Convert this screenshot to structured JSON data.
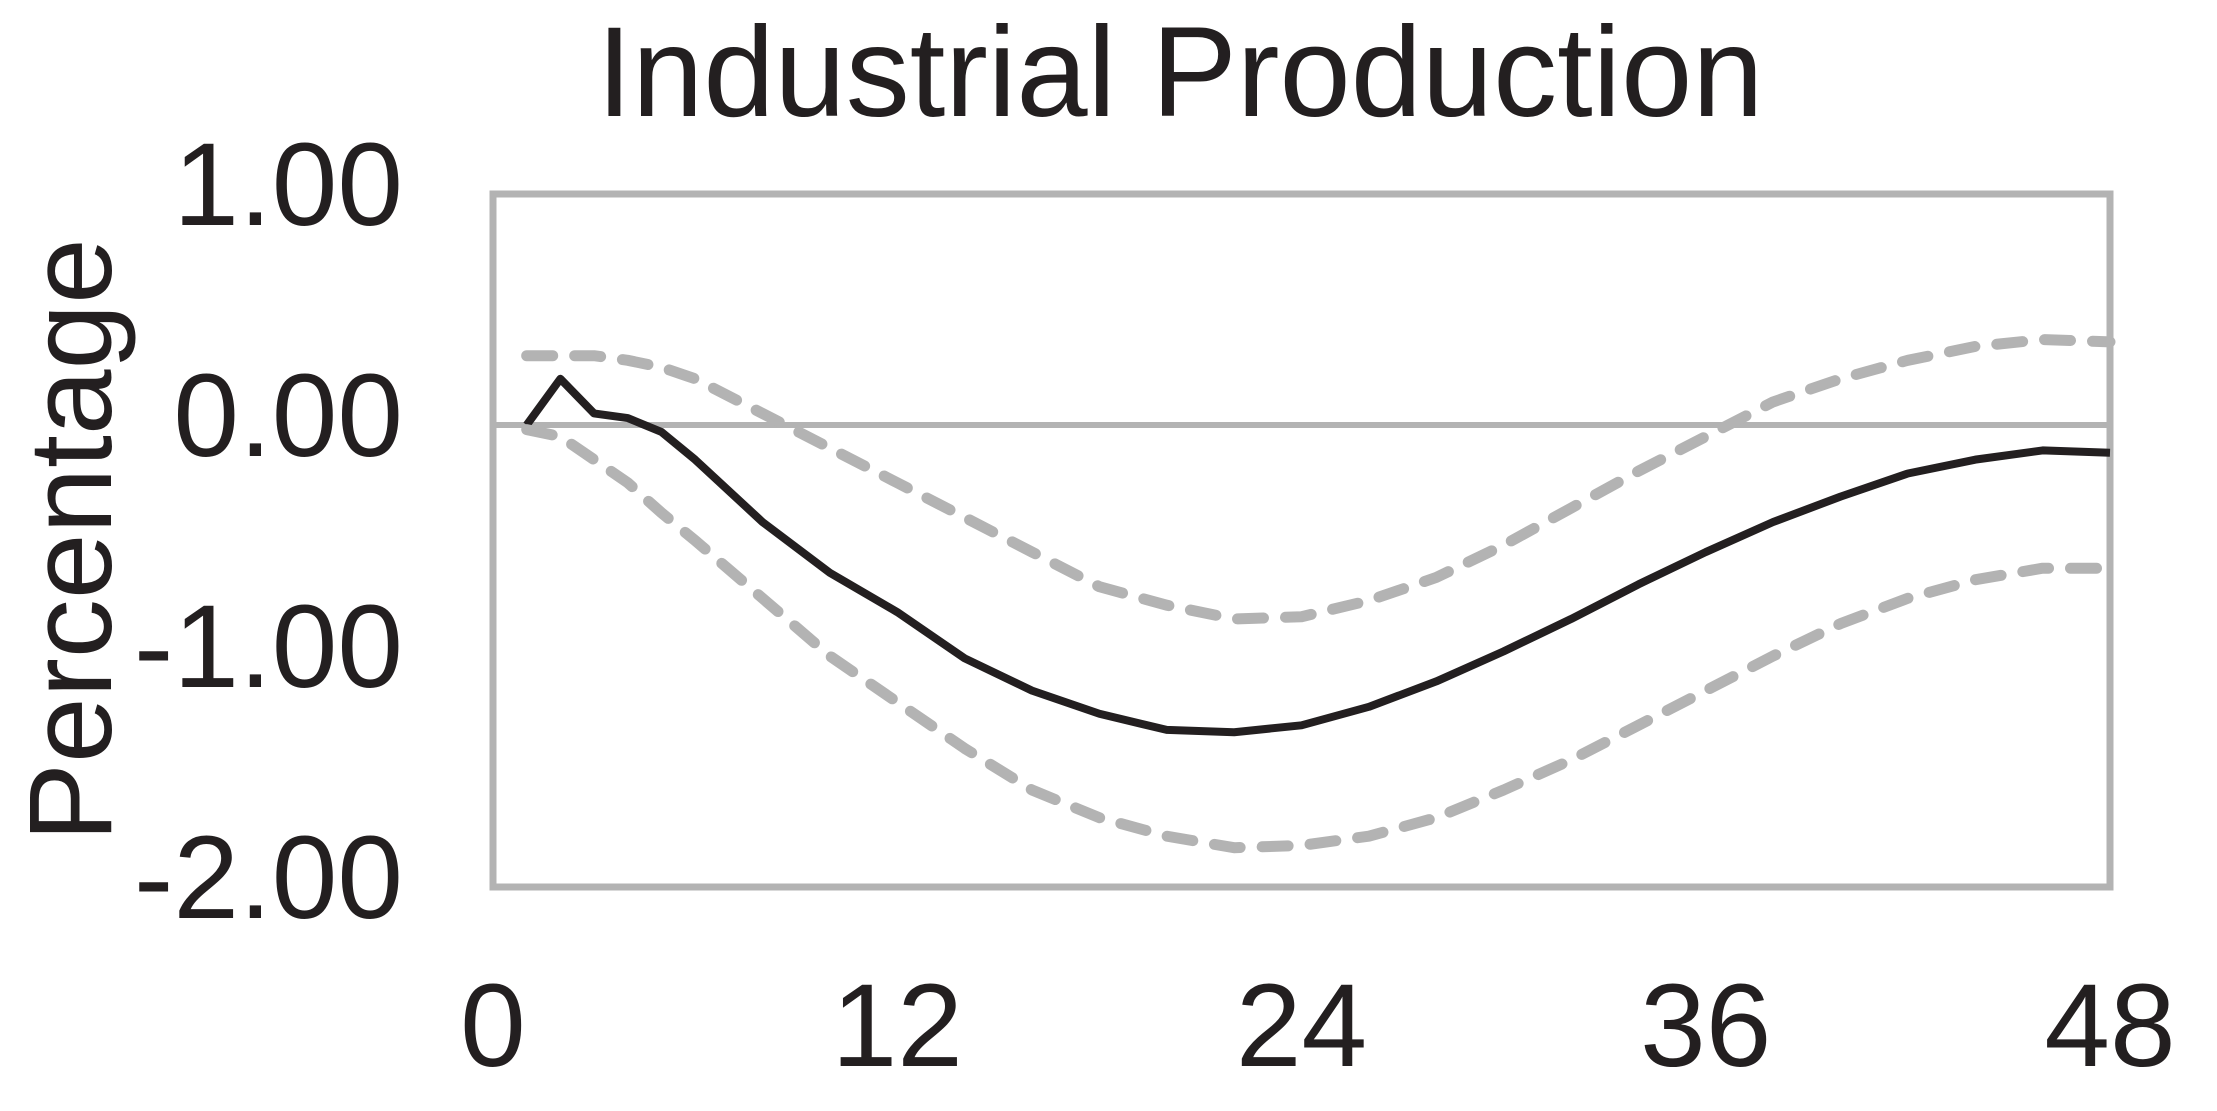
{
  "chart_data": {
    "type": "line",
    "title": "Industrial Production",
    "y_label": "Percentage",
    "x": [
      1,
      2,
      3,
      4,
      5,
      6,
      8,
      10,
      12,
      14,
      16,
      18,
      20,
      22,
      24,
      26,
      28,
      30,
      32,
      34,
      36,
      38,
      40,
      42,
      44,
      46,
      48
    ],
    "series": [
      {
        "color": "#231f20",
        "style": "solid",
        "values": [
          0.0,
          0.2,
          0.05,
          0.03,
          -0.03,
          -0.15,
          -0.42,
          -0.64,
          -0.81,
          -1.01,
          -1.15,
          -1.25,
          -1.32,
          -1.33,
          -1.3,
          -1.22,
          -1.11,
          -0.98,
          -0.84,
          -0.69,
          -0.55,
          -0.42,
          -0.31,
          -0.21,
          -0.15,
          -0.11,
          -0.12
        ]
      },
      {
        "color": "#b3b3b3",
        "style": "dashed",
        "values": [
          0.3,
          0.3,
          0.3,
          0.28,
          0.25,
          0.2,
          0.05,
          -0.1,
          -0.25,
          -0.4,
          -0.55,
          -0.7,
          -0.78,
          -0.84,
          -0.83,
          -0.76,
          -0.66,
          -0.52,
          -0.36,
          -0.2,
          -0.05,
          0.1,
          0.2,
          0.28,
          0.34,
          0.37,
          0.36
        ]
      },
      {
        "color": "#b3b3b3",
        "style": "dashed",
        "values": [
          -0.02,
          -0.05,
          -0.15,
          -0.25,
          -0.38,
          -0.5,
          -0.75,
          -1.0,
          -1.2,
          -1.4,
          -1.58,
          -1.7,
          -1.78,
          -1.83,
          -1.82,
          -1.78,
          -1.7,
          -1.58,
          -1.45,
          -1.3,
          -1.15,
          -1.0,
          -0.86,
          -0.75,
          -0.67,
          -0.62,
          -0.62
        ]
      }
    ],
    "xlim": [
      0,
      48
    ],
    "xticks": [
      0,
      12,
      24,
      36,
      48
    ],
    "ylim": [
      -2,
      1
    ],
    "yticks": [
      {
        "value": -2,
        "label": "-2.00"
      },
      {
        "value": -1,
        "label": "-1.00"
      },
      {
        "value": 0,
        "label": "0.00"
      },
      {
        "value": 1,
        "label": "1.00"
      }
    ],
    "zero_line": true,
    "frame_color": "#b3b3b3"
  }
}
